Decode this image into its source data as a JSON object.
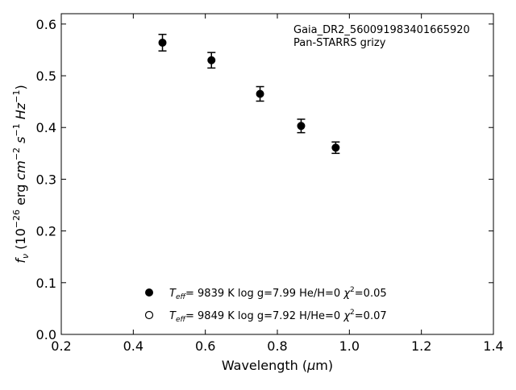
{
  "chart_data": {
    "type": "scatter",
    "annotation": [
      "Gaia_DR2_560091983401665920",
      "Pan-STARRS grizy"
    ],
    "xlabel": "Wavelength (μm)",
    "ylabel": "f_ν (10^-26 erg cm^-2 s^-1 Hz^-1)",
    "xlim": [
      0.2,
      1.4
    ],
    "ylim": [
      0.0,
      0.62
    ],
    "xticks": [
      "0.2",
      "0.4",
      "0.6",
      "0.8",
      "1.0",
      "1.2",
      "1.4"
    ],
    "yticks": [
      "0.0",
      "0.1",
      "0.2",
      "0.3",
      "0.4",
      "0.5",
      "0.6"
    ],
    "grid": false,
    "legend_position": "lower-center",
    "series": [
      {
        "marker": "filled-circle",
        "x": [
          0.481,
          0.617,
          0.752,
          0.866,
          0.962
        ],
        "y": [
          0.564,
          0.53,
          0.465,
          0.403,
          0.361
        ],
        "yerr": [
          0.016,
          0.015,
          0.014,
          0.013,
          0.011
        ]
      }
    ],
    "legend": [
      {
        "marker": "filled-circle",
        "teff": "9839 K",
        "logg": "log g=7.99",
        "comp": "He/H=0",
        "chi2": "=0.05"
      },
      {
        "marker": "open-circle",
        "teff": "9849 K",
        "logg": "log g=7.92",
        "comp": "H/He=0",
        "chi2": "=0.07"
      }
    ]
  }
}
